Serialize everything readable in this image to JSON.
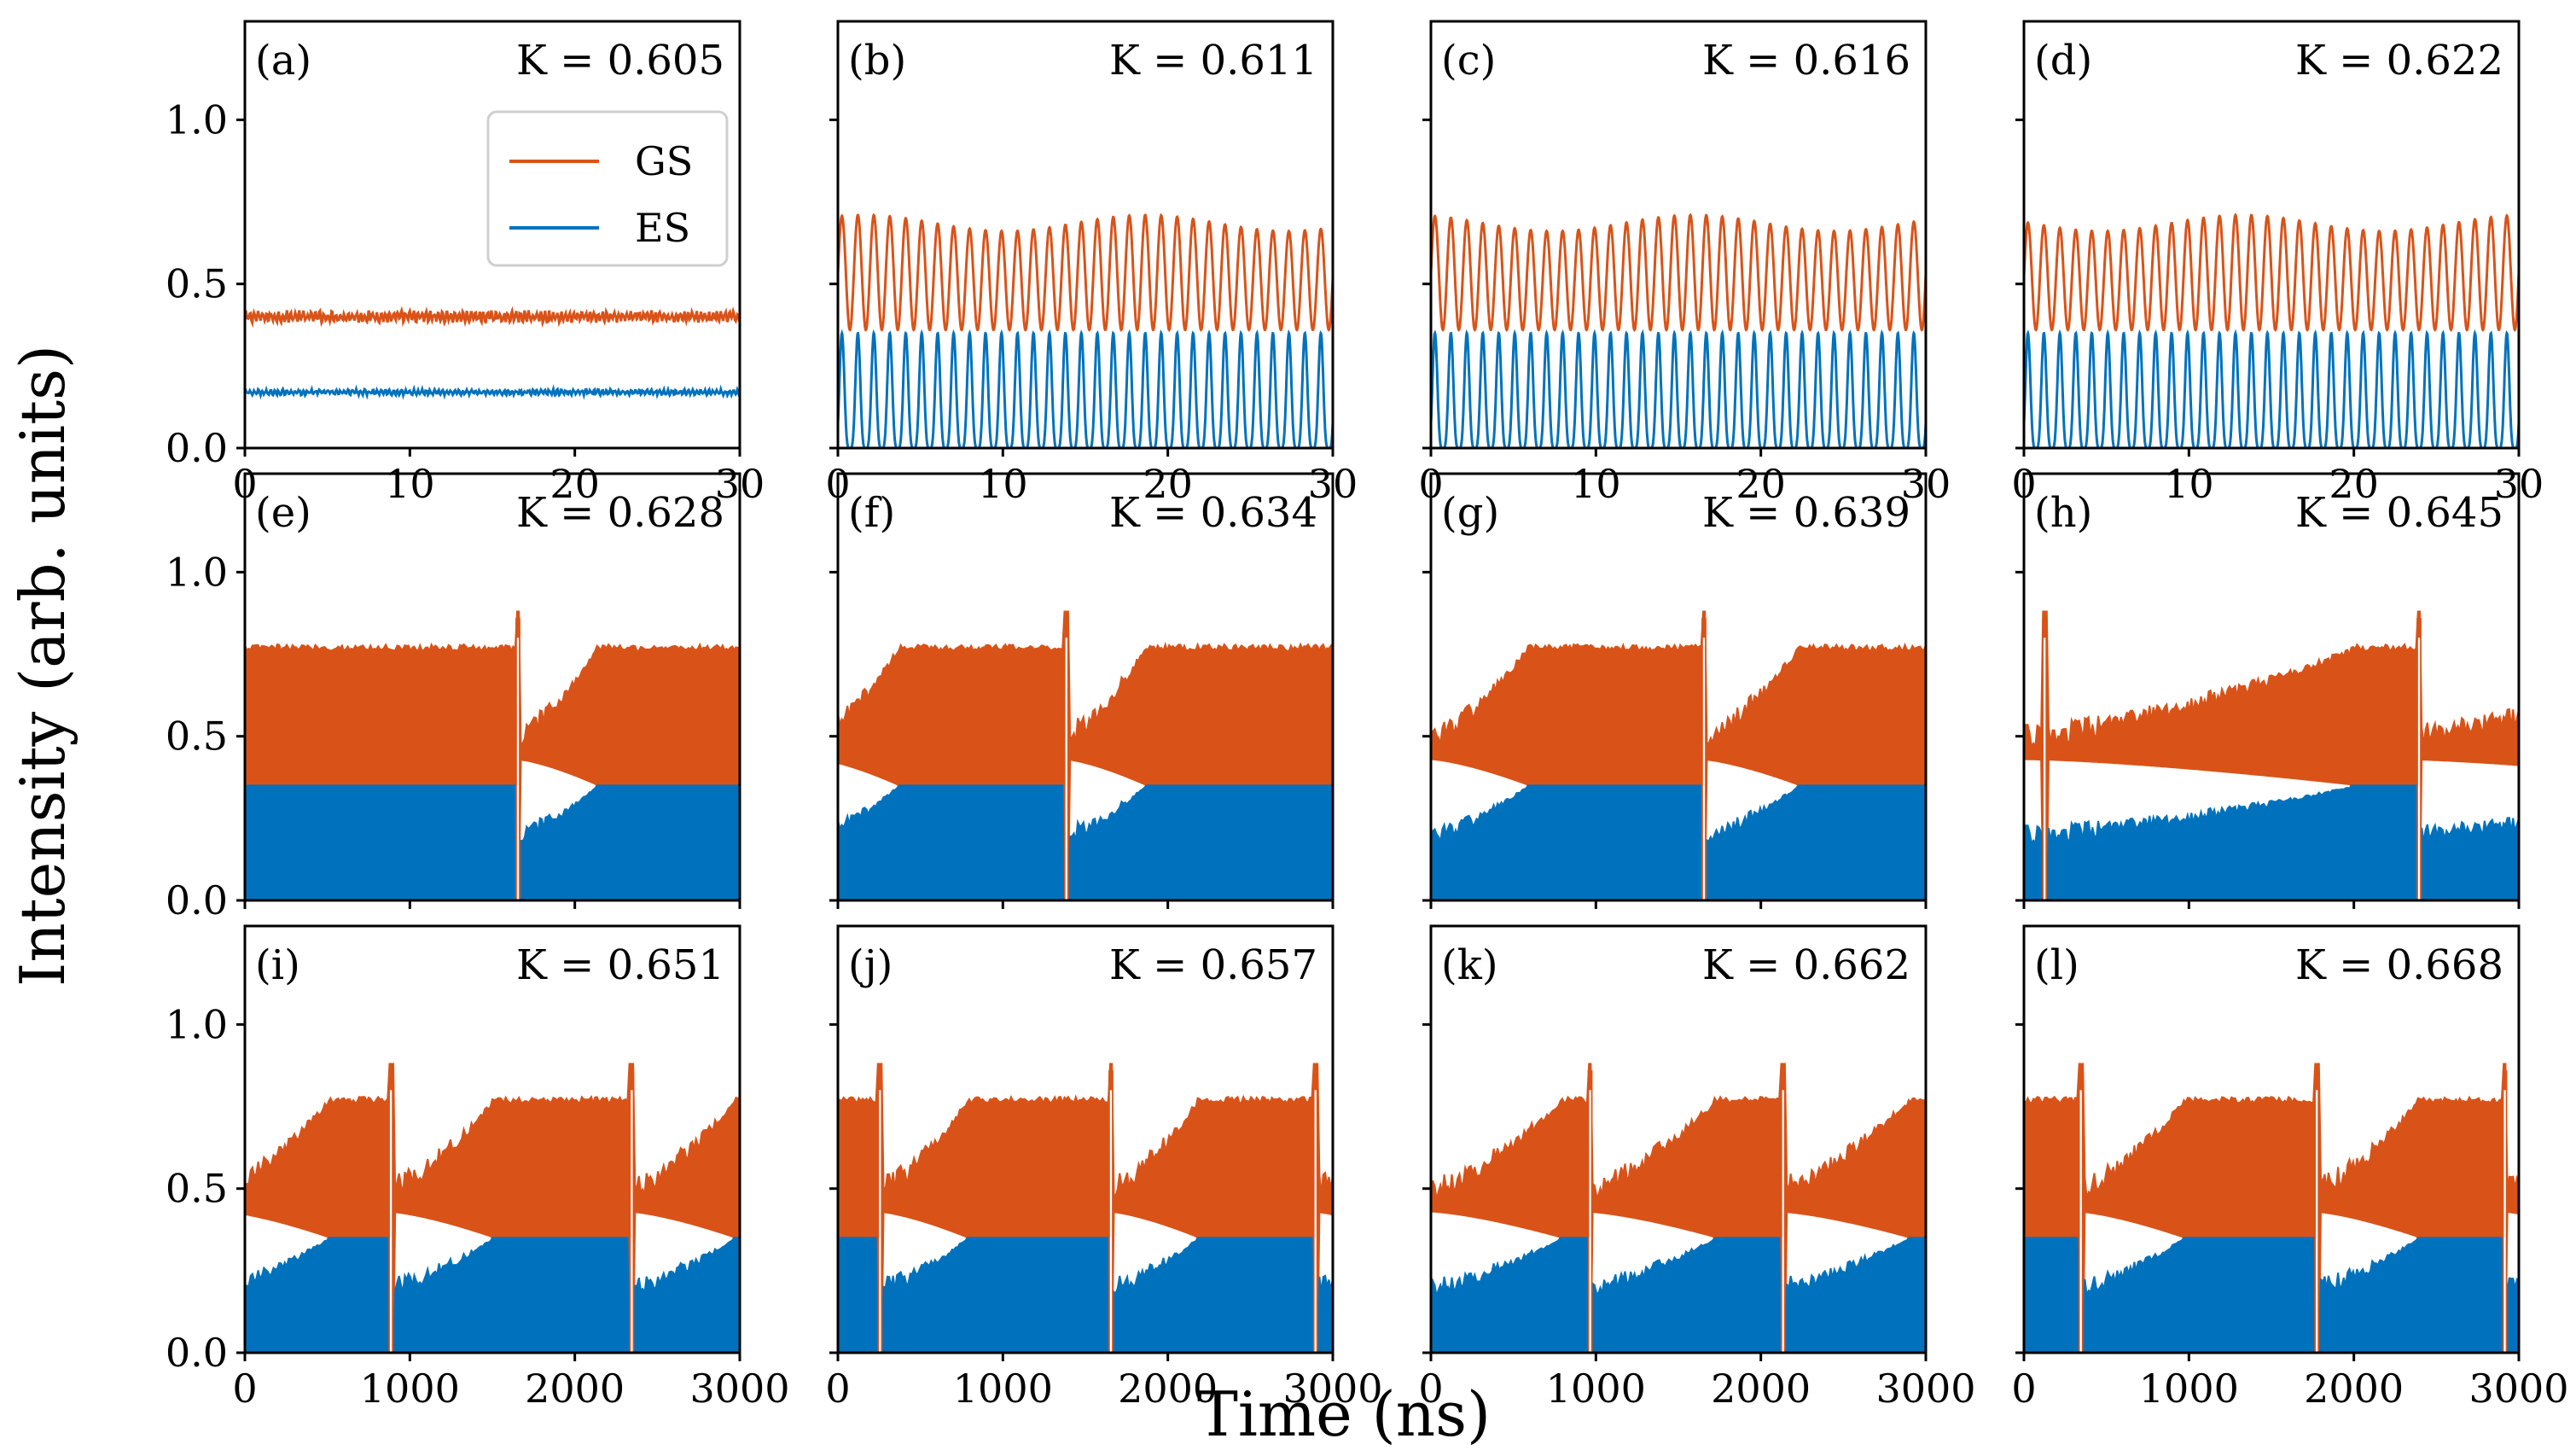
{
  "figure": {
    "xlabel": "Time (ns)",
    "ylabel": "Intensity (arb. units)"
  },
  "colors": {
    "GS": "#d95319",
    "ES": "#0072bd",
    "frame": "#000000"
  },
  "legend": {
    "items": [
      {
        "label": "GS",
        "color": "#d95319"
      },
      {
        "label": "ES",
        "color": "#0072bd"
      }
    ]
  },
  "chart_data": [
    {
      "type": "line",
      "panel": "(a)",
      "k_label": "K = 0.605",
      "regime": "steady",
      "xlim": [
        0,
        30
      ],
      "ylim": [
        0,
        1.3
      ],
      "x_ticks": [
        0,
        10,
        20,
        30
      ],
      "y_ticks": [
        0.0,
        0.5,
        1.0
      ],
      "series": [
        {
          "name": "GS",
          "level": 0.4,
          "noise": 0.02
        },
        {
          "name": "ES",
          "level": 0.17,
          "noise": 0.01
        }
      ]
    },
    {
      "type": "line",
      "panel": "(b)",
      "k_label": "K = 0.611",
      "regime": "oscillation",
      "xlim": [
        0,
        30
      ],
      "ylim": [
        0,
        1.3
      ],
      "x_ticks": [
        0,
        10,
        20,
        30
      ],
      "y_ticks": [
        0.0,
        0.5,
        1.0
      ],
      "periods": 31,
      "series": [
        {
          "name": "GS",
          "min": 0.36,
          "max": 0.71
        },
        {
          "name": "ES",
          "min": 0.0,
          "max": 0.35
        }
      ]
    },
    {
      "type": "line",
      "panel": "(c)",
      "k_label": "K = 0.616",
      "regime": "oscillation",
      "xlim": [
        0,
        30
      ],
      "ylim": [
        0,
        1.3
      ],
      "x_ticks": [
        0,
        10,
        20,
        30
      ],
      "y_ticks": [
        0.0,
        0.5,
        1.0
      ],
      "periods": 31,
      "series": [
        {
          "name": "GS",
          "min": 0.36,
          "max": 0.71
        },
        {
          "name": "ES",
          "min": 0.0,
          "max": 0.35
        }
      ]
    },
    {
      "type": "line",
      "panel": "(d)",
      "k_label": "K = 0.622",
      "regime": "oscillation",
      "xlim": [
        0,
        30
      ],
      "ylim": [
        0,
        1.3
      ],
      "x_ticks": [
        0,
        10,
        20,
        30
      ],
      "y_ticks": [
        0.0,
        0.5,
        1.0
      ],
      "periods": 31,
      "series": [
        {
          "name": "GS",
          "min": 0.36,
          "max": 0.71
        },
        {
          "name": "ES",
          "min": 0.0,
          "max": 0.35
        }
      ]
    },
    {
      "type": "line",
      "panel": "(e)",
      "k_label": "K = 0.628",
      "regime": "switching",
      "xlim": [
        0,
        3000
      ],
      "ylim": [
        0,
        1.3
      ],
      "x_ticks": [],
      "y_ticks": [
        0.0,
        0.5,
        1.0
      ],
      "switch_times": [
        1640
      ],
      "start_phase": 1.0,
      "rise_ns": 500,
      "series": [
        {
          "name": "GS",
          "range_on": [
            0.35,
            0.77
          ]
        },
        {
          "name": "ES",
          "range_on": [
            0.0,
            0.35
          ]
        }
      ]
    },
    {
      "type": "line",
      "panel": "(f)",
      "k_label": "K = 0.634",
      "regime": "switching",
      "xlim": [
        0,
        3000
      ],
      "ylim": [
        0,
        1.3
      ],
      "x_ticks": [],
      "y_ticks": [
        0.0,
        0.5,
        1.0
      ],
      "switch_times": [
        1370
      ],
      "start_phase": 0.25,
      "rise_ns": 500,
      "series": [
        {
          "name": "GS",
          "range_on": [
            0.35,
            0.77
          ]
        },
        {
          "name": "ES",
          "range_on": [
            0.0,
            0.35
          ]
        }
      ]
    },
    {
      "type": "line",
      "panel": "(g)",
      "k_label": "K = 0.639",
      "regime": "switching",
      "xlim": [
        0,
        3000
      ],
      "ylim": [
        0,
        1.3
      ],
      "x_ticks": [],
      "y_ticks": [
        0.0,
        0.5,
        1.0
      ],
      "switch_times": [
        1640
      ],
      "start_phase": 0.0,
      "rise_ns": 600,
      "series": [
        {
          "name": "GS",
          "range_on": [
            0.35,
            0.77
          ]
        },
        {
          "name": "ES",
          "range_on": [
            0.0,
            0.35
          ]
        }
      ]
    },
    {
      "type": "line",
      "panel": "(h)",
      "k_label": "K = 0.645",
      "regime": "switching",
      "xlim": [
        0,
        3000
      ],
      "ylim": [
        0,
        1.3
      ],
      "x_ticks": [],
      "y_ticks": [
        0.0,
        0.5,
        1.0
      ],
      "switch_times": [
        110,
        2380
      ],
      "start_phase": 0.0,
      "rise_ns": 2000,
      "series": [
        {
          "name": "GS",
          "range_on": [
            0.35,
            0.77
          ]
        },
        {
          "name": "ES",
          "range_on": [
            0.0,
            0.35
          ]
        }
      ]
    },
    {
      "type": "line",
      "panel": "(i)",
      "k_label": "K = 0.651",
      "regime": "switching",
      "xlim": [
        0,
        3000
      ],
      "ylim": [
        0,
        1.3
      ],
      "x_ticks": [
        0,
        1000,
        2000,
        3000
      ],
      "y_ticks": [
        0.0,
        0.5,
        1.0
      ],
      "switch_times": [
        870,
        2330
      ],
      "start_phase": 0.2,
      "rise_ns": 650,
      "series": [
        {
          "name": "GS",
          "range_on": [
            0.35,
            0.77
          ]
        },
        {
          "name": "ES",
          "range_on": [
            0.0,
            0.35
          ]
        }
      ]
    },
    {
      "type": "line",
      "panel": "(j)",
      "k_label": "K = 0.657",
      "regime": "switching",
      "xlim": [
        0,
        3000
      ],
      "ylim": [
        0,
        1.3
      ],
      "x_ticks": [
        0,
        1000,
        2000,
        3000
      ],
      "y_ticks": [
        0.0,
        0.5,
        1.0
      ],
      "switch_times": [
        240,
        1640,
        2880
      ],
      "start_phase": 1.0,
      "rise_ns": 550,
      "series": [
        {
          "name": "GS",
          "range_on": [
            0.35,
            0.77
          ]
        },
        {
          "name": "ES",
          "range_on": [
            0.0,
            0.35
          ]
        }
      ]
    },
    {
      "type": "line",
      "panel": "(k)",
      "k_label": "K = 0.662",
      "regime": "switching",
      "xlim": [
        0,
        3000
      ],
      "ylim": [
        0,
        1.3
      ],
      "x_ticks": [
        0,
        1000,
        2000,
        3000
      ],
      "y_ticks": [
        0.0,
        0.5,
        1.0
      ],
      "switch_times": [
        950,
        2120
      ],
      "start_phase": 0.0,
      "rise_ns": 800,
      "series": [
        {
          "name": "GS",
          "range_on": [
            0.35,
            0.77
          ]
        },
        {
          "name": "ES",
          "range_on": [
            0.0,
            0.35
          ]
        }
      ]
    },
    {
      "type": "line",
      "panel": "(l)",
      "k_label": "K = 0.668",
      "regime": "switching",
      "xlim": [
        0,
        3000
      ],
      "ylim": [
        0,
        1.3
      ],
      "x_ticks": [
        0,
        1000,
        2000,
        3000
      ],
      "y_ticks": [
        0.0,
        0.5,
        1.0
      ],
      "switch_times": [
        330,
        1760,
        2900
      ],
      "start_phase": 1.0,
      "rise_ns": 650,
      "series": [
        {
          "name": "GS",
          "range_on": [
            0.35,
            0.77
          ]
        },
        {
          "name": "ES",
          "range_on": [
            0.0,
            0.35
          ]
        }
      ]
    }
  ]
}
